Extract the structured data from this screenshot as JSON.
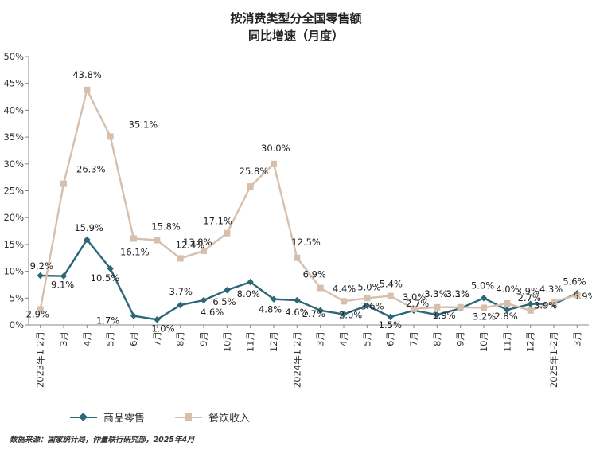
{
  "title_line1": "按消费类型分全国零售额",
  "title_line2": "同比增速（月度）",
  "source": "数据来源：国家统计局，仲量联行研究部，2025年4月",
  "colors": {
    "retail": "#2b6777",
    "catering": "#d6bfac",
    "axis": "#888888"
  },
  "chart_data": {
    "type": "line",
    "title": "按消费类型分全国零售额 同比增速（月度）",
    "x": [
      "2023年1-2月",
      "3月",
      "4月",
      "5月",
      "6月",
      "7月",
      "8月",
      "9月",
      "10月",
      "11月",
      "12月",
      "2024年1-2月",
      "3月",
      "4月",
      "5月",
      "6月",
      "7月",
      "8月",
      "9月",
      "10月",
      "11月",
      "12月",
      "2025年1-2月",
      "3月"
    ],
    "ylim": [
      0,
      50
    ],
    "yticks": [
      "0%",
      "5%",
      "10%",
      "15%",
      "20%",
      "25%",
      "30%",
      "35%",
      "40%",
      "45%",
      "50%"
    ],
    "legend_position": "bottom-left",
    "series": [
      {
        "name": "商品零售",
        "marker": "diamond",
        "values": [
          9.2,
          9.1,
          15.9,
          10.5,
          1.7,
          1.0,
          3.7,
          4.6,
          6.5,
          8.0,
          4.8,
          4.6,
          2.7,
          2.0,
          3.6,
          1.5,
          2.7,
          1.9,
          3.1,
          5.0,
          2.8,
          3.9,
          3.9,
          5.9
        ],
        "labels": [
          "9.2%",
          "9.1%",
          "15.9%",
          "10.5%",
          "1.7%",
          "1.0%",
          "3.7%",
          "4.6%",
          "6.5%",
          "8.0%",
          "4.8%",
          "4.6%",
          "2.7%",
          "2.0%",
          "3.6%",
          "1.5%",
          "2.7%",
          "1.9%",
          "3.1%",
          "5.0%",
          "2.8%",
          "3.9%",
          "3.9%",
          "5.9%"
        ]
      },
      {
        "name": "餐饮收入",
        "marker": "square",
        "values": [
          2.9,
          26.3,
          43.8,
          35.1,
          16.1,
          15.8,
          12.4,
          13.8,
          17.1,
          25.8,
          30.0,
          12.5,
          6.9,
          4.4,
          5.0,
          5.4,
          3.0,
          3.3,
          3.3,
          3.2,
          4.0,
          2.7,
          4.3,
          5.6
        ],
        "labels": [
          "2.9%",
          "26.3%",
          "43.8%",
          "35.1%",
          "16.1%",
          "15.8%",
          "12.4%",
          "13.8%",
          "17.1%",
          "25.8%",
          "30.0%",
          "12.5%",
          "6.9%",
          "4.4%",
          "5.0%",
          "5.4%",
          "3.0%",
          "3.3%",
          "3.3%",
          "3.2%",
          "4.0%",
          "2.7%",
          "4.3%",
          "5.6%"
        ]
      }
    ]
  }
}
